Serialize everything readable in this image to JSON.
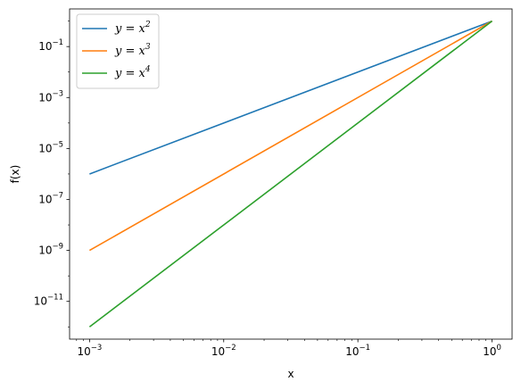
{
  "chart_data": {
    "type": "line",
    "title": "",
    "xlabel": "x",
    "ylabel": "f(x)",
    "xscale": "log",
    "yscale": "log",
    "xlim": [
      0.00071,
      1.41
    ],
    "ylim": [
      3.3e-13,
      3.0
    ],
    "grid": false,
    "legend_position": "top-left",
    "x_ticks": [
      {
        "value": 0.001,
        "base": "10",
        "exp": "−3"
      },
      {
        "value": 0.01,
        "base": "10",
        "exp": "−2"
      },
      {
        "value": 0.1,
        "base": "10",
        "exp": "−1"
      },
      {
        "value": 1,
        "base": "10",
        "exp": "0"
      }
    ],
    "y_ticks": [
      {
        "value": 1e-11,
        "base": "10",
        "exp": "−11"
      },
      {
        "value": 1e-09,
        "base": "10",
        "exp": "−9"
      },
      {
        "value": 1e-07,
        "base": "10",
        "exp": "−7"
      },
      {
        "value": 1e-05,
        "base": "10",
        "exp": "−5"
      },
      {
        "value": 0.001,
        "base": "10",
        "exp": "−3"
      },
      {
        "value": 0.1,
        "base": "10",
        "exp": "−1"
      }
    ],
    "series": [
      {
        "name_base": "y = x",
        "name_exp": "2",
        "power": 2,
        "color": "#1f77b4",
        "x": [
          0.001,
          1
        ],
        "y": [
          1e-06,
          1
        ]
      },
      {
        "name_base": "y = x",
        "name_exp": "3",
        "power": 3,
        "color": "#ff7f0e",
        "x": [
          0.001,
          1
        ],
        "y": [
          1e-09,
          1
        ]
      },
      {
        "name_base": "y = x",
        "name_exp": "4",
        "power": 4,
        "color": "#2ca02c",
        "x": [
          0.001,
          1
        ],
        "y": [
          1e-12,
          1
        ]
      }
    ]
  }
}
